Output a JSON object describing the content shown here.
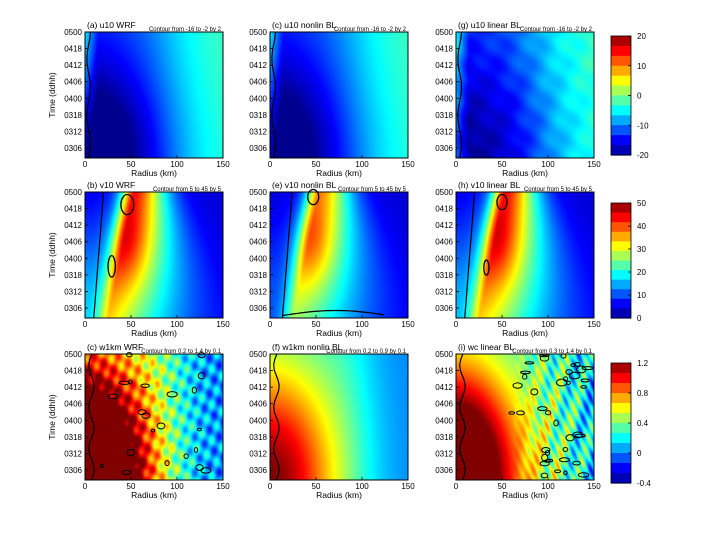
{
  "chart_data": {
    "type": "heatmap",
    "y_ticks": [
      "0306",
      "0312",
      "0318",
      "0400",
      "0406",
      "0412",
      "0418",
      "0500"
    ],
    "x_ticks": [
      "0",
      "50",
      "100",
      "150"
    ],
    "x_range": [
      0,
      150
    ],
    "panels": [
      {
        "id": "a",
        "title": "(a) u10 WRF",
        "xlabel": "Radius (km)",
        "ylabel": "Time (ddhh)",
        "note": "Contour from -16 to -2 by 2",
        "field": "u10",
        "variant": "wrf"
      },
      {
        "id": "c",
        "title": "(c) u10 nonlin BL",
        "xlabel": "Radius (km)",
        "ylabel": "",
        "note": "Contour from -16 to -2 by 2",
        "field": "u10",
        "variant": "nonlin"
      },
      {
        "id": "g",
        "title": "(g) u10 linear BL",
        "xlabel": "Radius (km)",
        "ylabel": "",
        "note": "Contour from -16 to -2 by 2",
        "field": "u10",
        "variant": "linear"
      },
      {
        "id": "b",
        "title": "(b) v10 WRF",
        "xlabel": "Radius (km)",
        "ylabel": "Time (ddhh)",
        "note": "Contour from 5 to 45 by 5",
        "field": "v10",
        "variant": "wrf"
      },
      {
        "id": "e",
        "title": "(e) v10 nonlin BL",
        "xlabel": "Radius (km)",
        "ylabel": "",
        "note": "Contour from 5 to 45 by 5",
        "field": "v10",
        "variant": "nonlin"
      },
      {
        "id": "h",
        "title": "(h) v10 linear BL",
        "xlabel": "Radius (km)",
        "ylabel": "",
        "note": "Contour from 5 to 45 by 5",
        "field": "v10",
        "variant": "linear"
      },
      {
        "id": "c2",
        "title": "(c) w1km WRF",
        "xlabel": "Radius (km)",
        "ylabel": "Time (ddhh)",
        "note": "Contour from 0.2 to 1.4 by 0.1",
        "field": "w",
        "variant": "wrf"
      },
      {
        "id": "f",
        "title": "(f) w1km nonlin BL",
        "xlabel": "Radius (km)",
        "ylabel": "",
        "note": "Contour from 0.2 to 0.9 by 0.1",
        "field": "w",
        "variant": "nonlin"
      },
      {
        "id": "i",
        "title": "(i) wc linear BL",
        "xlabel": "Radius (km)",
        "ylabel": "",
        "note": "Contour from 0.3 to 1.4 by 0.1",
        "field": "w",
        "variant": "linear"
      }
    ],
    "colorbars": [
      {
        "field": "u10",
        "range": [
          -20,
          20
        ],
        "ticks": [
          "20",
          "10",
          "0",
          "-10",
          "-20"
        ]
      },
      {
        "field": "v10",
        "range": [
          0,
          50
        ],
        "ticks": [
          "50",
          "40",
          "30",
          "20",
          "10",
          "0"
        ]
      },
      {
        "field": "w",
        "range": [
          -0.4,
          1.2
        ],
        "ticks": [
          "1.2",
          "0.8",
          "0.4",
          "0",
          "-0.4"
        ]
      }
    ],
    "colormap": [
      "#00008f",
      "#0000ff",
      "#0080ff",
      "#00ffff",
      "#80ff80",
      "#ffff00",
      "#ff8000",
      "#ff0000",
      "#800000"
    ]
  }
}
